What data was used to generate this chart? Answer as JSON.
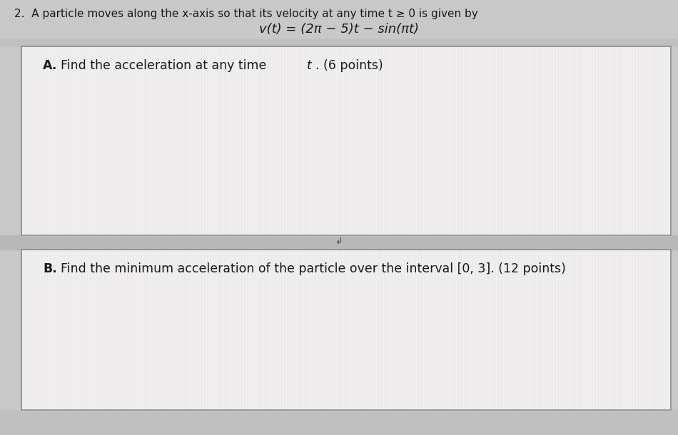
{
  "header_text": "2.  A particle moves along the x-axis so that its velocity at any time t ≥ 0 is given by",
  "formula_text": "v(t) = (2π − 5)t − sin(πt)",
  "part_a_full": "A.  Find the acceleration at any time t. (6 points)",
  "part_b_full": "B.  Find the minimum acceleration of the particle over the interval [0, 3]. (12 points)",
  "outside_bg": "#c8c8c8",
  "box_bg": "#f0eeee",
  "box_edge": "#888888",
  "text_color": "#1a1a1a",
  "header_fontsize": 11,
  "formula_fontsize": 13,
  "body_fontsize": 12.5
}
